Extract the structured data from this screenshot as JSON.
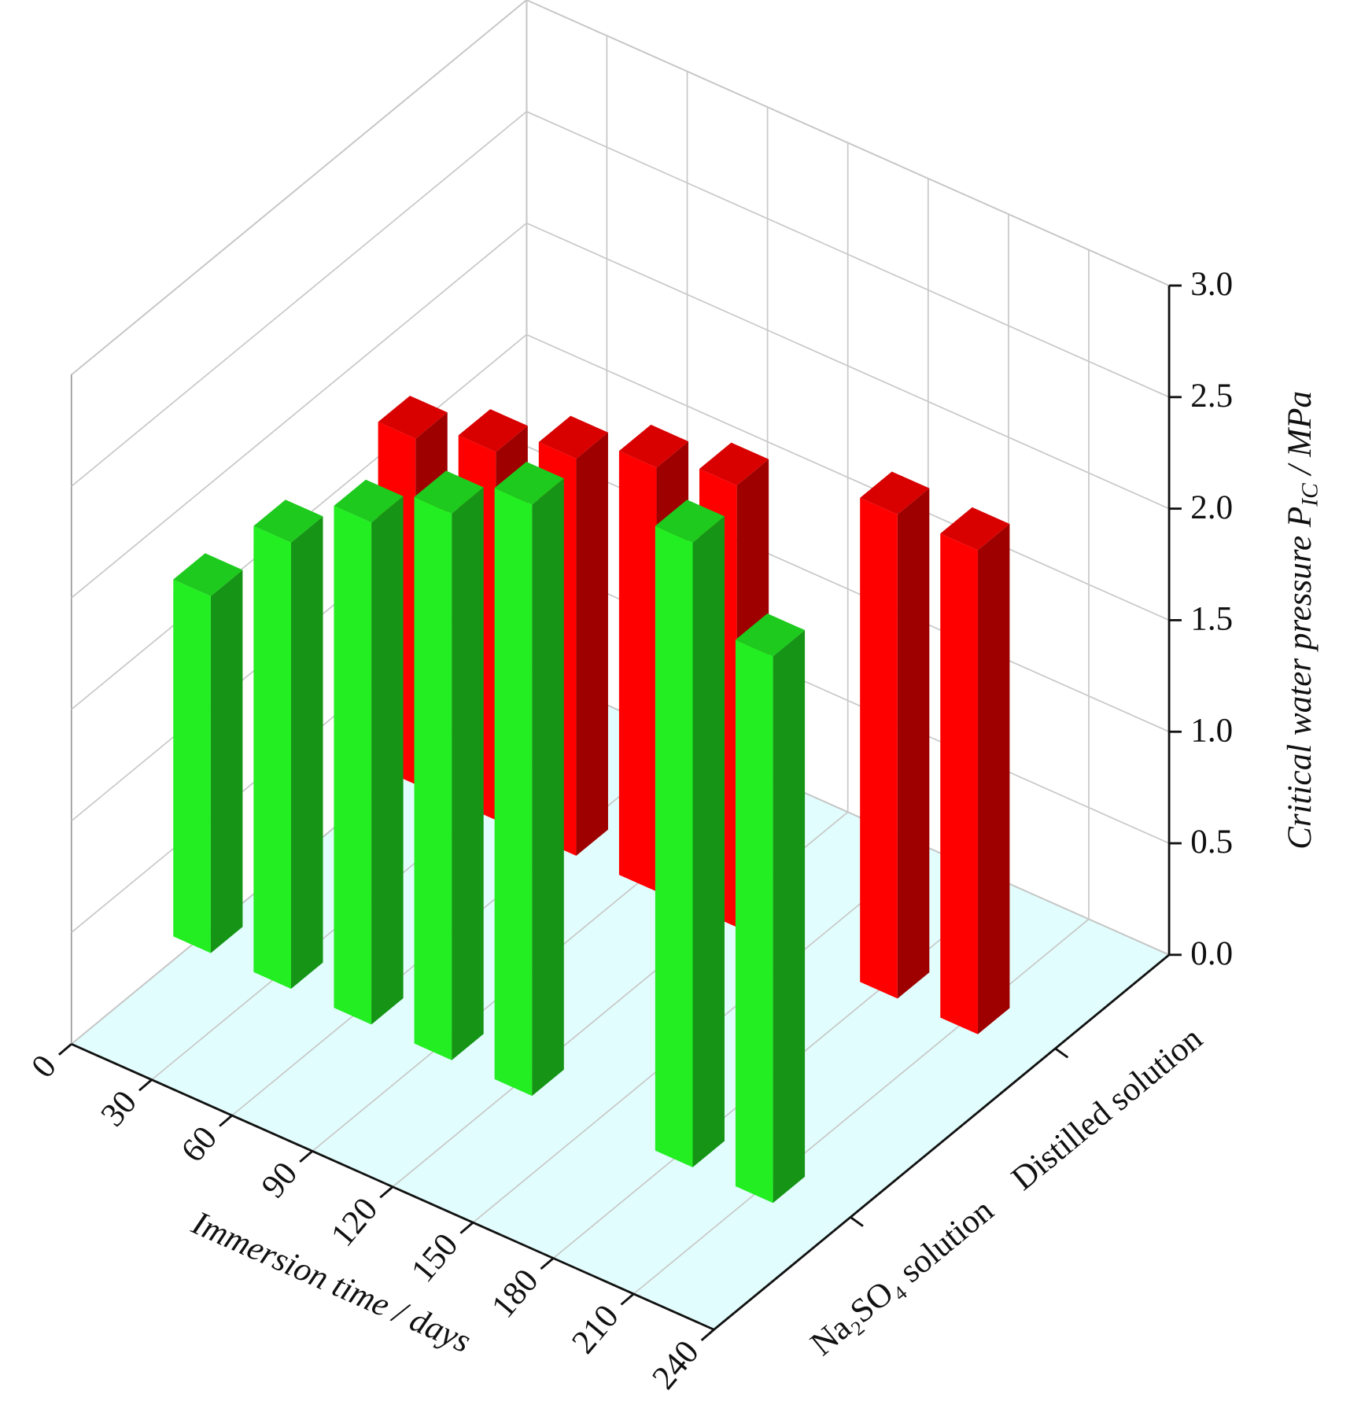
{
  "chart_data": {
    "type": "bar3d",
    "xlabel": "Immersion time / days",
    "zlabel": {
      "main": "Critical water pressure ",
      "symbol": "P",
      "sub": "IC",
      "unit": " / MPa"
    },
    "x": [
      0,
      30,
      60,
      90,
      120,
      180,
      210
    ],
    "xlim": [
      0,
      240
    ],
    "xticks": [
      0,
      30,
      60,
      90,
      120,
      150,
      180,
      210,
      240
    ],
    "zlim": [
      0,
      3
    ],
    "zticks": [
      {
        "value": 0,
        "label": "0.0"
      },
      0.5,
      {
        "value": 1,
        "label": "1.0"
      },
      1.5,
      {
        "value": 2,
        "label": "2.0"
      },
      2.5,
      {
        "value": 3,
        "label": "3.0"
      }
    ],
    "grid": true,
    "series": [
      {
        "name": "Na₂SO₄ solution",
        "color": "#22ee22",
        "values": [
          1.6,
          2.0,
          2.25,
          2.45,
          2.65,
          2.8,
          2.45
        ]
      },
      {
        "name": "Distilled solution",
        "color": "#ff0000",
        "values": [
          1.55,
          1.65,
          1.78,
          1.9,
          1.98,
          2.17,
          2.17
        ]
      }
    ]
  }
}
